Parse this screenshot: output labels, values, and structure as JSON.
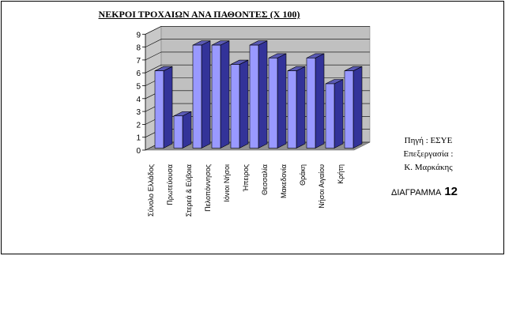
{
  "chart_data": {
    "type": "bar",
    "title": "ΝΕΚΡΟΙ ΤΡΟΧΑΙΩΝ ΑΝΑ ΠΑΘΟΝΤΕΣ (Χ 100)",
    "categories": [
      "Σύνολο Ελλάδος",
      "Πρωτεύουσα",
      "Στερεά & Εύβοια",
      "Πελοπόννησος",
      "Ιόνιοι Νήσοι",
      "Ήπειρος",
      "Θεσσαλία",
      "Μακεδονία",
      "Θράκη",
      "Νήσοι Αιγαίου",
      "Κρήτη"
    ],
    "values": [
      6,
      2.5,
      8,
      8,
      6.5,
      8,
      7,
      6,
      7,
      5,
      6
    ],
    "ylim": [
      0,
      9
    ],
    "yticks": [
      "0",
      "1",
      "2",
      "3",
      "4",
      "5",
      "6",
      "7",
      "8",
      "9"
    ],
    "xlabel": "",
    "ylabel": "",
    "style": "3d-column",
    "grid": true,
    "colors": {
      "front": "#9999ff",
      "side": "#333399",
      "top": "#5a5ab4"
    }
  },
  "source": {
    "line1": "Πηγή : ΕΣΥΕ",
    "line2": "Επεξεργασία :",
    "line3": "Κ. Μαρκάκης"
  },
  "diagram": {
    "label": "ΔΙΑΓΡΑΜΜΑ",
    "number": "12"
  }
}
